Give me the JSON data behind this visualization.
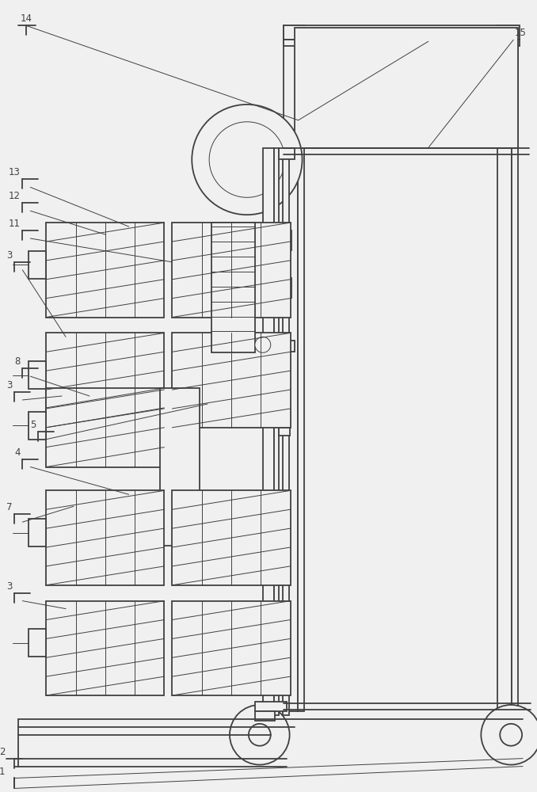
{
  "bg_color": "#f0f0f0",
  "line_color": "#404040",
  "lw": 1.3,
  "tlw": 0.7
}
